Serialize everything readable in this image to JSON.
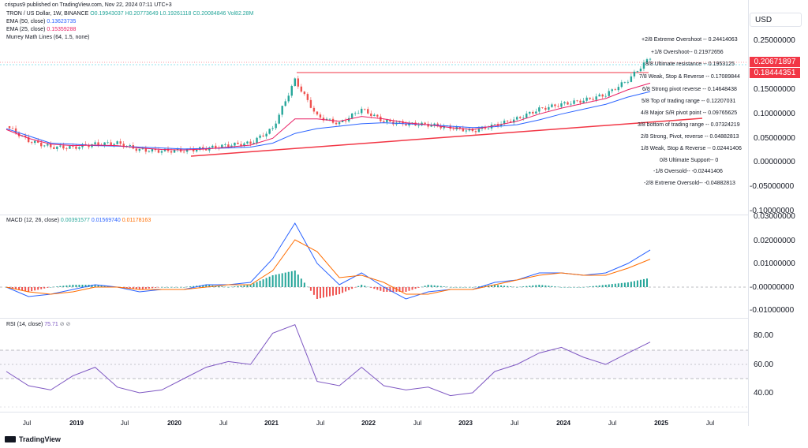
{
  "header": {
    "published": "crispus9 published on TradingView.com, Nov 22, 2024 07:11 UTC+3",
    "symbol": "TRON / US Dollar, 1W, BINANCE",
    "ohlc": "O0.19943037 H0.20773649 L0.19261118 C0.20084846 Vol82.28M",
    "ema50_label": "EMA (50, close)",
    "ema50_value": "0.13623735",
    "ema25_label": "EMA (25, close)",
    "ema25_value": "0.15359288",
    "murrey_label": "Murrey Math Lines (64, 1.5, none)",
    "currency_button": "USD"
  },
  "colors": {
    "up": "#26a69a",
    "down": "#ef5350",
    "ema50": "#2962ff",
    "ema25": "#e91e63",
    "macd": "#2962ff",
    "signal": "#ff6d00",
    "rsi": "#7e57c2",
    "price_tag": "#f23645"
  },
  "price_axis": [
    "0.25000000",
    "0.15000000",
    "0.10000000",
    "0.05000000",
    "0.00000000",
    "-0.05000000",
    "-0.10000000"
  ],
  "price_tags": {
    "last": "0.20671897",
    "level": "0.18444351"
  },
  "murrey": [
    {
      "text": "+2/8 Extreme Overshoot -- 0.24414063",
      "color": "#ef5350"
    },
    {
      "text": "+1/8 Overshoot-- 0.21972656",
      "color": "#ef5350"
    },
    {
      "text": "8/8 Ultimate resistance -- 0.1953125",
      "color": "#26c6da"
    },
    {
      "text": "7/8 Weak, Stop & Reverse -- 0.17089844",
      "color": "#ff9800"
    },
    {
      "text": "6/8 Strong pivot reverse -- 0.14648438",
      "color": "#e040fb"
    },
    {
      "text": "5/8 Top of trading range -- 0.12207031",
      "color": "#66bb6a"
    },
    {
      "text": "4/8 Major S/R pivot point -- 0.09765625",
      "color": "#26c6da"
    },
    {
      "text": "3/8 bottom of trading range -- 0.07324219",
      "color": "#66bb6a"
    },
    {
      "text": "2/8 Strong, Pivot, reverse -- 0.04882813",
      "color": "#e040fb"
    },
    {
      "text": "1/8 Weak, Stop & Reverse -- 0.02441406",
      "color": "#ff9800"
    },
    {
      "text": "0/8 Ultimate Support-- 0",
      "color": "#26c6da"
    },
    {
      "text": "-1/8 Oversold-- -0.02441406",
      "color": "#66bb6a"
    },
    {
      "text": "-2/8 Extreme Oversold-- -0.04882813",
      "color": "#66bb6a"
    }
  ],
  "macd": {
    "label": "MACD (12, 26, close)",
    "values": [
      "0.00391577",
      "0.01569740",
      "0.01178163"
    ],
    "axis": [
      "0.03000000",
      "0.02000000",
      "0.01000000",
      "-0.00000000",
      "-0.01000000"
    ]
  },
  "rsi": {
    "label": "RSI (14, close)",
    "value": "75.71",
    "axis": [
      "80.00",
      "60.00",
      "40.00"
    ]
  },
  "time_axis": [
    {
      "label": "Jul",
      "year": false
    },
    {
      "label": "2019",
      "year": true
    },
    {
      "label": "Jul",
      "year": false
    },
    {
      "label": "2020",
      "year": true
    },
    {
      "label": "Jul",
      "year": false
    },
    {
      "label": "2021",
      "year": true
    },
    {
      "label": "Jul",
      "year": false
    },
    {
      "label": "2022",
      "year": true
    },
    {
      "label": "Jul",
      "year": false
    },
    {
      "label": "2023",
      "year": true
    },
    {
      "label": "Jul",
      "year": false
    },
    {
      "label": "2024",
      "year": true
    },
    {
      "label": "Jul",
      "year": false
    },
    {
      "label": "2025",
      "year": true
    },
    {
      "label": "Jul",
      "year": false
    }
  ],
  "footer": {
    "brand": "TradingView"
  },
  "chart_data": {
    "type": "line",
    "title": "TRON / US Dollar, 1W, BINANCE",
    "ylim": [
      -0.1,
      0.28
    ],
    "x": [
      "2018-04",
      "2018-07",
      "2018-10",
      "2019-01",
      "2019-04",
      "2019-07",
      "2019-10",
      "2020-01",
      "2020-04",
      "2020-07",
      "2020-10",
      "2021-01",
      "2021-03",
      "2021-04",
      "2021-05",
      "2021-07",
      "2021-10",
      "2022-01",
      "2022-04",
      "2022-07",
      "2022-10",
      "2023-01",
      "2023-04",
      "2023-07",
      "2023-10",
      "2024-01",
      "2024-04",
      "2024-07",
      "2024-10",
      "2024-11"
    ],
    "series": [
      {
        "name": "TRON / US Dollar",
        "values": [
          0.065,
          0.035,
          0.022,
          0.021,
          0.028,
          0.03,
          0.016,
          0.014,
          0.015,
          0.019,
          0.026,
          0.03,
          0.06,
          0.16,
          0.085,
          0.07,
          0.1,
          0.075,
          0.07,
          0.068,
          0.062,
          0.055,
          0.067,
          0.08,
          0.1,
          0.11,
          0.118,
          0.13,
          0.16,
          0.2067
        ]
      },
      {
        "name": "EMA (50, close)",
        "values": [
          0.06,
          0.045,
          0.03,
          0.028,
          0.025,
          0.024,
          0.022,
          0.02,
          0.018,
          0.019,
          0.02,
          0.022,
          0.03,
          0.05,
          0.06,
          0.065,
          0.07,
          0.072,
          0.07,
          0.068,
          0.065,
          0.062,
          0.064,
          0.068,
          0.078,
          0.09,
          0.1,
          0.11,
          0.125,
          0.1362
        ]
      },
      {
        "name": "EMA (25, close)",
        "values": [
          0.058,
          0.04,
          0.028,
          0.025,
          0.026,
          0.025,
          0.02,
          0.017,
          0.016,
          0.018,
          0.022,
          0.026,
          0.04,
          0.08,
          0.08,
          0.075,
          0.085,
          0.08,
          0.072,
          0.068,
          0.062,
          0.058,
          0.066,
          0.075,
          0.09,
          0.102,
          0.112,
          0.122,
          0.14,
          0.1536
        ]
      }
    ],
    "macd": {
      "macd": [
        0.0,
        -0.004,
        -0.003,
        -0.001,
        0.001,
        0.0,
        -0.002,
        -0.001,
        -0.001,
        0.001,
        0.001,
        0.002,
        0.012,
        0.027,
        0.01,
        0.001,
        0.006,
        0.0,
        -0.005,
        -0.002,
        -0.001,
        -0.001,
        0.002,
        0.003,
        0.006,
        0.006,
        0.005,
        0.006,
        0.01,
        0.0157
      ],
      "signal": [
        0.0,
        -0.002,
        -0.003,
        -0.002,
        0.0,
        0.0,
        -0.001,
        -0.001,
        -0.001,
        0.0,
        0.001,
        0.001,
        0.007,
        0.02,
        0.015,
        0.004,
        0.005,
        0.002,
        -0.003,
        -0.003,
        -0.001,
        -0.001,
        0.001,
        0.003,
        0.005,
        0.006,
        0.005,
        0.005,
        0.008,
        0.0118
      ]
    },
    "rsi": [
      55,
      45,
      42,
      52,
      58,
      44,
      40,
      42,
      50,
      58,
      62,
      60,
      82,
      88,
      48,
      45,
      58,
      45,
      42,
      44,
      38,
      40,
      55,
      60,
      68,
      72,
      65,
      60,
      68,
      75.71
    ],
    "rsi_levels": [
      70,
      50,
      30
    ]
  }
}
